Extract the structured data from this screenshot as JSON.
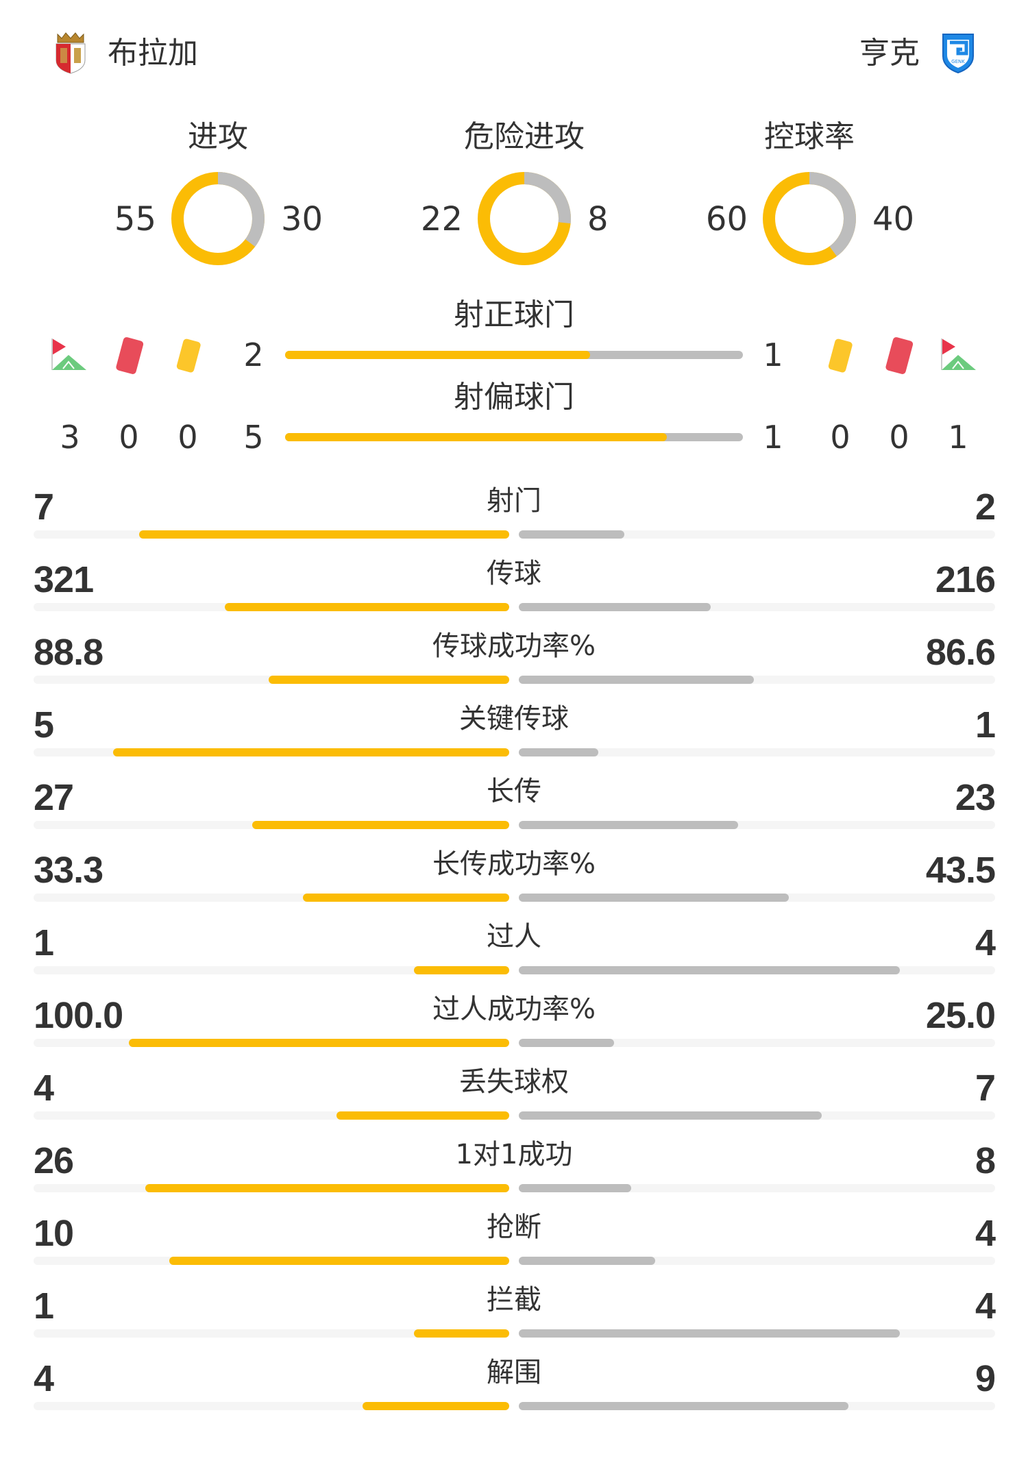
{
  "colors": {
    "home": "#FBBC05",
    "away": "#BDBDBD",
    "track": "#F5F5F5",
    "text": "#333333",
    "red_card": "#E84C5A",
    "yellow_card": "#FBBC05",
    "corner_flag": "#E8344A",
    "corner_grass": "#6CCB7E"
  },
  "header": {
    "home": {
      "name": "布拉加",
      "logo": "braga-crest-icon"
    },
    "away": {
      "name": "亨克",
      "logo": "genk-crest-icon"
    }
  },
  "donuts": [
    {
      "label": "进攻",
      "home": 55,
      "away": 30
    },
    {
      "label": "危险进攻",
      "home": 22,
      "away": 8
    },
    {
      "label": "控球率",
      "home": 60,
      "away": 40
    }
  ],
  "shots": {
    "on_target": {
      "label": "射正球门",
      "home": 2,
      "away": 1
    },
    "off_target": {
      "label": "射偏球门",
      "home": 5,
      "away": 1
    }
  },
  "events": {
    "home": {
      "corners": 3,
      "red_cards": 0,
      "yellow_cards": 0
    },
    "away": {
      "yellow_cards": 0,
      "red_cards": 0,
      "corners": 1
    }
  },
  "stats": [
    {
      "label": "射门",
      "home": "7",
      "away": "2"
    },
    {
      "label": "传球",
      "home": "321",
      "away": "216"
    },
    {
      "label": "传球成功率%",
      "home": "88.8",
      "away": "86.6"
    },
    {
      "label": "关键传球",
      "home": "5",
      "away": "1"
    },
    {
      "label": "长传",
      "home": "27",
      "away": "23"
    },
    {
      "label": "长传成功率%",
      "home": "33.3",
      "away": "43.5"
    },
    {
      "label": "过人",
      "home": "1",
      "away": "4"
    },
    {
      "label": "过人成功率%",
      "home": "100.0",
      "away": "25.0"
    },
    {
      "label": "丢失球权",
      "home": "4",
      "away": "7"
    },
    {
      "label": "1对1成功",
      "home": "26",
      "away": "8"
    },
    {
      "label": "抢断",
      "home": "10",
      "away": "4"
    },
    {
      "label": "拦截",
      "home": "1",
      "away": "4"
    },
    {
      "label": "解围",
      "home": "4",
      "away": "9"
    }
  ]
}
